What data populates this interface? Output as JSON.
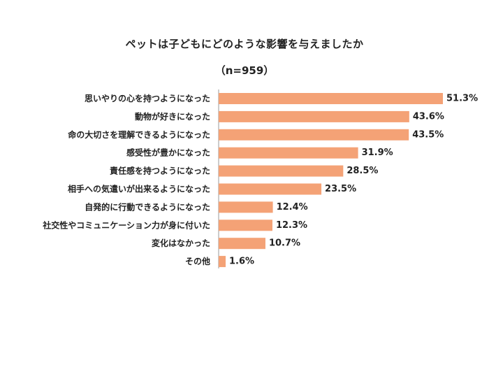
{
  "chart_data": {
    "type": "bar",
    "orientation": "horizontal",
    "title": "ペットは子どもにどのような影響を与えましたか",
    "subtitle": "（n=959）",
    "categories": [
      "思いやりの心を持つようになった",
      "動物が好きになった",
      "命の大切さを理解できるようになった",
      "感受性が豊かになった",
      "責任感を持つようになった",
      "相手への気遣いが出来るようになった",
      "自発的に行動できるようになった",
      "社交性やコミュニケーション力が身に付いた",
      "変化はなかった",
      "その他"
    ],
    "values": [
      51.3,
      43.6,
      43.5,
      31.9,
      28.5,
      23.5,
      12.4,
      12.3,
      10.7,
      1.6
    ],
    "value_labels": [
      "51.3%",
      "43.6%",
      "43.5%",
      "31.9%",
      "28.5%",
      "23.5%",
      "12.4%",
      "12.3%",
      "10.7%",
      "1.6%"
    ],
    "xlim": [
      0,
      60
    ],
    "bar_color": "#f4a276",
    "axis_color": "#999999",
    "grid": false,
    "legend": "none"
  }
}
